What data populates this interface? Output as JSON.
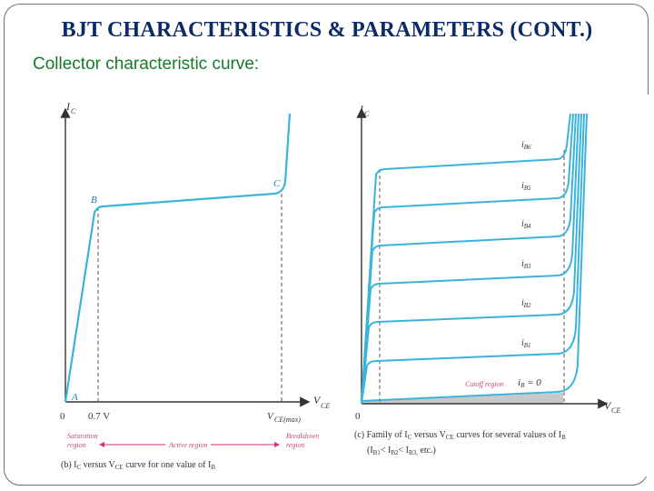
{
  "slide": {
    "title": "BJT CHARACTERISTICS & PARAMETERS (CONT.)",
    "subtitle": "Collector characteristic curve:"
  },
  "left_figure": {
    "y_axis_label": "I",
    "y_axis_sub": "C",
    "x_axis_label": "V",
    "x_axis_sub": "CE",
    "origin": "0",
    "tick_sat": "0.7 V",
    "tick_vmax": "V",
    "tick_vmax_sub": "CE(max)",
    "point_a": "A",
    "point_b": "B",
    "point_c": "C",
    "region_saturation_1": "Saturation",
    "region_saturation_2": "region",
    "region_active": "Active region",
    "region_breakdown_1": "Breakdown",
    "region_breakdown_2": "region",
    "caption_prefix": "(b) I",
    "caption_sub": "C",
    "caption_mid": " versus V",
    "caption_sub2": "CE",
    "caption_end": " curve for one value of I",
    "caption_sub3": "B"
  },
  "right_figure": {
    "y_axis_label": "I",
    "y_axis_sub": "C",
    "x_axis_label": "V",
    "x_axis_sub": "CE",
    "origin": "0",
    "curve_labels": [
      {
        "main": "i",
        "sub": "B6"
      },
      {
        "main": "i",
        "sub": "B5"
      },
      {
        "main": "i",
        "sub": "B4"
      },
      {
        "main": "i",
        "sub": "B3"
      },
      {
        "main": "i",
        "sub": "B2"
      },
      {
        "main": "i",
        "sub": "B1"
      }
    ],
    "zero_label": "i",
    "zero_sub": "B",
    "zero_val": " = 0",
    "cutoff_label": "Cutoff region",
    "caption_line1": "(c) Family of I",
    "caption_line1_b": "C",
    "caption_line1_c": " versus V",
    "caption_line1_d": "CE",
    "caption_line1_e": " curves for several values of I",
    "caption_line1_f": "B",
    "caption_line2": "(I",
    "caption_line2_b": "B1",
    "caption_line2_c": "< I",
    "caption_line2_d": "B2",
    "caption_line2_e": "< I",
    "caption_line2_f": "B3,",
    "caption_line2_g": " etc.)"
  },
  "colors": {
    "curve": "#3bb4dc",
    "axis": "#333333",
    "title": "#0b2a66",
    "subtitle": "#157a2a",
    "region": "#c05070",
    "active_arrow": "#d0307a"
  }
}
